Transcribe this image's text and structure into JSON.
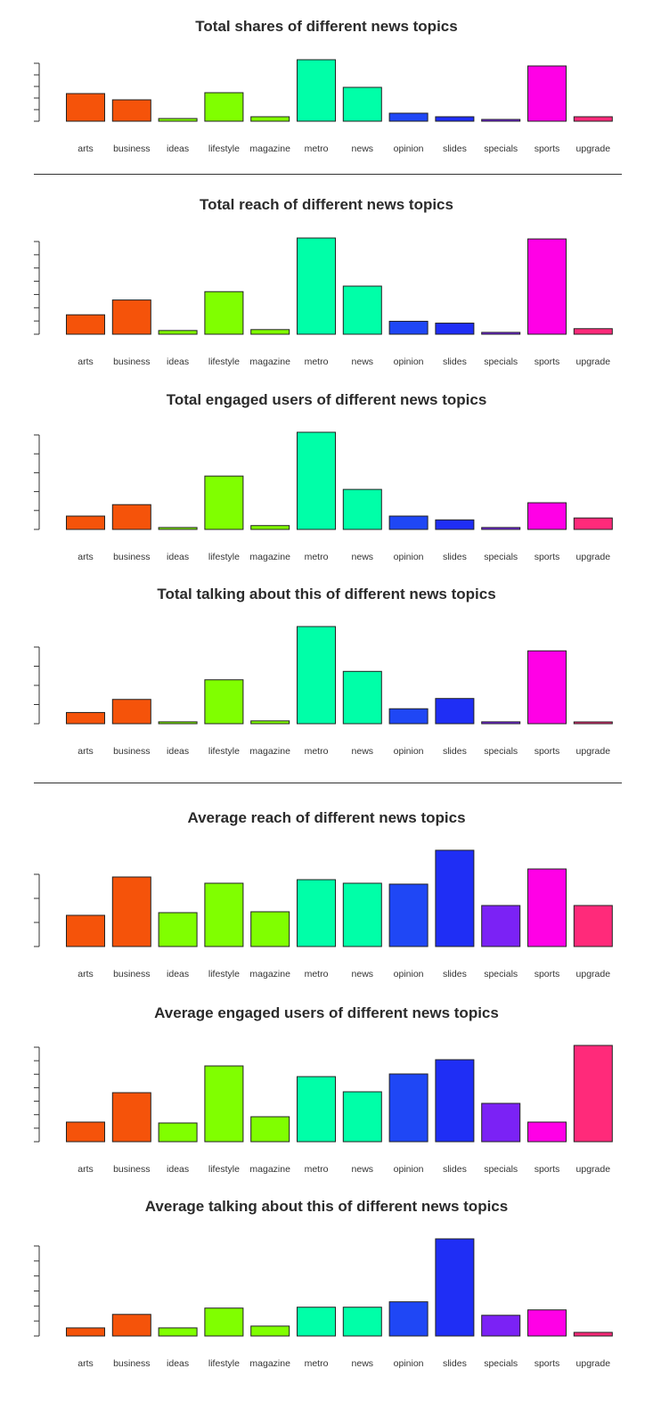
{
  "chart_data": [
    {
      "type": "bar",
      "title": "Total shares of different news topics",
      "categories": [
        "arts",
        "business",
        "ideas",
        "lifestyle",
        "magazine",
        "metro",
        "news",
        "opinion",
        "slides",
        "specials",
        "sports",
        "upgrade"
      ],
      "values": [
        31,
        24,
        3,
        32,
        5,
        69,
        38,
        9,
        5,
        1,
        62,
        5
      ],
      "ylim": [
        0,
        70
      ],
      "y_ticks": 6,
      "colors": [
        "#F5530A",
        "#F5530A",
        "#80FF00",
        "#80FF00",
        "#80FF00",
        "#00FFA8",
        "#00FFA8",
        "#1F47F5",
        "#1F2EF5",
        "#7B22F5",
        "#FF00E6",
        "#FF2A7A"
      ]
    },
    {
      "type": "bar",
      "title": "Total reach of different news topics",
      "categories": [
        "arts",
        "business",
        "ideas",
        "lifestyle",
        "magazine",
        "metro",
        "news",
        "opinion",
        "slides",
        "specials",
        "sports",
        "upgrade"
      ],
      "values": [
        21,
        37,
        4,
        46,
        5,
        104,
        52,
        14,
        12,
        2,
        103,
        6
      ],
      "ylim": [
        0,
        105
      ],
      "y_ticks": 8,
      "colors": [
        "#F5530A",
        "#F5530A",
        "#80FF00",
        "#80FF00",
        "#80FF00",
        "#00FFA8",
        "#00FFA8",
        "#1F47F5",
        "#1F2EF5",
        "#7B22F5",
        "#FF00E6",
        "#FF2A7A"
      ]
    },
    {
      "type": "bar",
      "title": "Total engaged users of different news topics",
      "categories": [
        "arts",
        "business",
        "ideas",
        "lifestyle",
        "magazine",
        "metro",
        "news",
        "opinion",
        "slides",
        "specials",
        "sports",
        "upgrade"
      ],
      "values": [
        7,
        13,
        1,
        28,
        2,
        51,
        21,
        7,
        5,
        1,
        14,
        6
      ],
      "ylim": [
        0,
        51
      ],
      "y_ticks": 6,
      "colors": [
        "#F5530A",
        "#F5530A",
        "#80FF00",
        "#80FF00",
        "#80FF00",
        "#00FFA8",
        "#00FFA8",
        "#1F47F5",
        "#1F2EF5",
        "#7B22F5",
        "#FF00E6",
        "#FF2A7A"
      ]
    },
    {
      "type": "bar",
      "title": "Total talking about this of different news topics",
      "categories": [
        "arts",
        "business",
        "ideas",
        "lifestyle",
        "magazine",
        "metro",
        "news",
        "opinion",
        "slides",
        "specials",
        "sports",
        "upgrade"
      ],
      "values": [
        12,
        26,
        2,
        47,
        3,
        104,
        56,
        16,
        27,
        2,
        78,
        1
      ],
      "ylim": [
        0,
        104
      ],
      "y_ticks": 5,
      "colors": [
        "#F5530A",
        "#F5530A",
        "#80FF00",
        "#80FF00",
        "#80FF00",
        "#00FFA8",
        "#00FFA8",
        "#1F47F5",
        "#1F2EF5",
        "#7B22F5",
        "#FF00E6",
        "#FF2A7A"
      ]
    },
    {
      "type": "bar",
      "title": "Average reach of different news topics",
      "categories": [
        "arts",
        "business",
        "ideas",
        "lifestyle",
        "magazine",
        "metro",
        "news",
        "opinion",
        "slides",
        "specials",
        "sports",
        "upgrade"
      ],
      "values": [
        35,
        78,
        38,
        71,
        39,
        75,
        71,
        70,
        108,
        46,
        87,
        46
      ],
      "ylim": [
        0,
        108
      ],
      "y_ticks": 4,
      "colors": [
        "#F5530A",
        "#F5530A",
        "#80FF00",
        "#80FF00",
        "#80FF00",
        "#00FFA8",
        "#00FFA8",
        "#1F47F5",
        "#1F2EF5",
        "#7B22F5",
        "#FF00E6",
        "#FF2A7A"
      ]
    },
    {
      "type": "bar",
      "title": "Average engaged users of different news topics",
      "categories": [
        "arts",
        "business",
        "ideas",
        "lifestyle",
        "magazine",
        "metro",
        "news",
        "opinion",
        "slides",
        "specials",
        "sports",
        "upgrade"
      ],
      "values": [
        22,
        55,
        21,
        85,
        28,
        73,
        56,
        76,
        92,
        43,
        22,
        108
      ],
      "ylim": [
        0,
        108
      ],
      "y_ticks": 8,
      "colors": [
        "#F5530A",
        "#F5530A",
        "#80FF00",
        "#80FF00",
        "#80FF00",
        "#00FFA8",
        "#00FFA8",
        "#1F47F5",
        "#1F2EF5",
        "#7B22F5",
        "#FF00E6",
        "#FF2A7A"
      ]
    },
    {
      "type": "bar",
      "title": "Average talking about this of different news topics",
      "categories": [
        "arts",
        "business",
        "ideas",
        "lifestyle",
        "magazine",
        "metro",
        "news",
        "opinion",
        "slides",
        "specials",
        "sports",
        "upgrade"
      ],
      "values": [
        9,
        24,
        9,
        31,
        11,
        32,
        32,
        38,
        108,
        23,
        29,
        4
      ],
      "ylim": [
        0,
        108
      ],
      "y_ticks": 7,
      "colors": [
        "#F5530A",
        "#F5530A",
        "#80FF00",
        "#80FF00",
        "#80FF00",
        "#00FFA8",
        "#00FFA8",
        "#1F47F5",
        "#1F2EF5",
        "#7B22F5",
        "#FF00E6",
        "#FF2A7A"
      ]
    }
  ]
}
